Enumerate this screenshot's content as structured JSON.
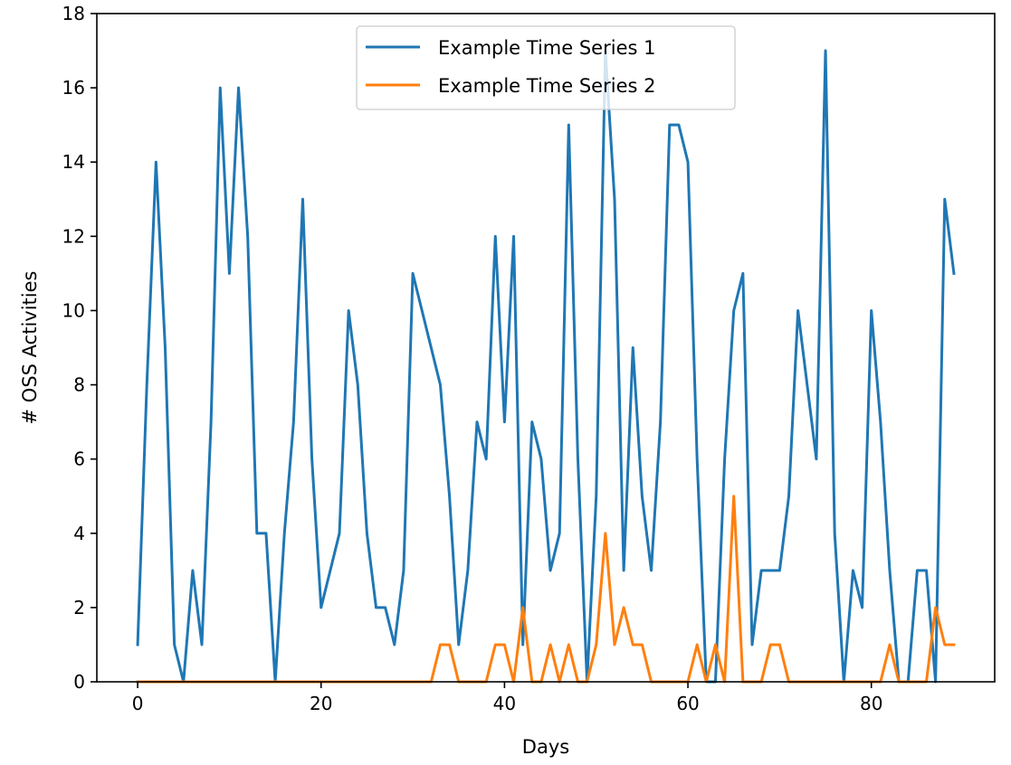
{
  "chart_data": {
    "type": "line",
    "title": "",
    "xlabel": "Days",
    "ylabel": "# OSS Activities",
    "xlim": [
      -4.45,
      93.45
    ],
    "ylim": [
      0,
      18
    ],
    "xticks": [
      0,
      20,
      40,
      60,
      80
    ],
    "yticks": [
      0,
      2,
      4,
      6,
      8,
      10,
      12,
      14,
      16,
      18
    ],
    "grid": false,
    "legend_position": "top-center",
    "x": [
      0,
      1,
      2,
      3,
      4,
      5,
      6,
      7,
      8,
      9,
      10,
      11,
      12,
      13,
      14,
      15,
      16,
      17,
      18,
      19,
      20,
      21,
      22,
      23,
      24,
      25,
      26,
      27,
      28,
      29,
      30,
      31,
      32,
      33,
      34,
      35,
      36,
      37,
      38,
      39,
      40,
      41,
      42,
      43,
      44,
      45,
      46,
      47,
      48,
      49,
      50,
      51,
      52,
      53,
      54,
      55,
      56,
      57,
      58,
      59,
      60,
      61,
      62,
      63,
      64,
      65,
      66,
      67,
      68,
      69,
      70,
      71,
      72,
      73,
      74,
      75,
      76,
      77,
      78,
      79,
      80,
      81,
      82,
      83,
      84,
      85,
      86,
      87,
      88,
      89
    ],
    "series": [
      {
        "name": "Example Time Series 1",
        "color": "#1f77b4",
        "values": [
          1,
          8,
          14,
          9,
          1,
          0,
          3,
          1,
          7,
          16,
          11,
          16,
          12,
          4,
          4,
          0,
          4,
          7,
          13,
          6,
          2,
          3,
          4,
          10,
          8,
          4,
          2,
          2,
          1,
          3,
          11,
          10,
          9,
          8,
          5,
          1,
          3,
          7,
          6,
          12,
          7,
          12,
          1,
          7,
          6,
          3,
          4,
          15,
          6,
          0,
          5,
          17,
          13,
          3,
          9,
          5,
          3,
          7,
          15,
          15,
          14,
          6,
          0,
          0,
          6,
          10,
          11,
          1,
          3,
          3,
          3,
          5,
          10,
          8,
          6,
          17,
          4,
          0,
          3,
          2,
          10,
          7,
          3,
          0,
          0,
          3,
          3,
          0,
          13,
          11
        ]
      },
      {
        "name": "Example Time Series 2",
        "color": "#ff7f0e",
        "values": [
          0,
          0,
          0,
          0,
          0,
          0,
          0,
          0,
          0,
          0,
          0,
          0,
          0,
          0,
          0,
          0,
          0,
          0,
          0,
          0,
          0,
          0,
          0,
          0,
          0,
          0,
          0,
          0,
          0,
          0,
          0,
          0,
          0,
          1,
          1,
          0,
          0,
          0,
          0,
          1,
          1,
          0,
          2,
          0,
          0,
          1,
          0,
          1,
          0,
          0,
          1,
          4,
          1,
          2,
          1,
          1,
          0,
          0,
          0,
          0,
          0,
          1,
          0,
          1,
          0,
          5,
          0,
          0,
          0,
          1,
          1,
          0,
          0,
          0,
          0,
          0,
          0,
          0,
          0,
          0,
          0,
          0,
          1,
          0,
          0,
          0,
          0,
          2,
          1,
          1
        ]
      }
    ]
  }
}
